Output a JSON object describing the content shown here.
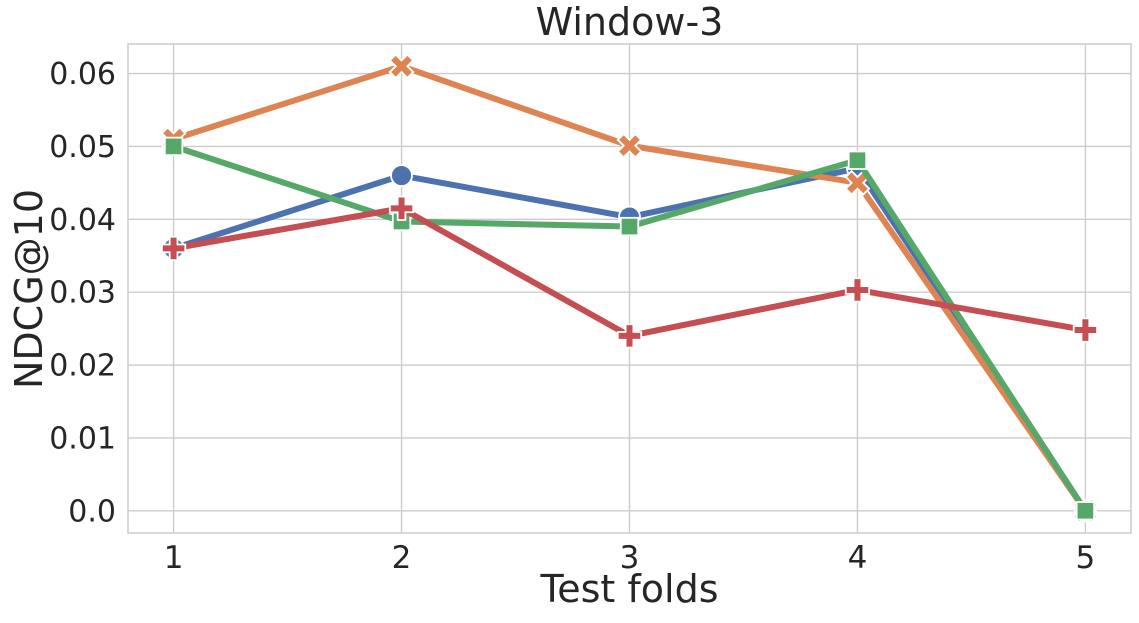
{
  "chart_data": {
    "type": "line",
    "title": "Window-3",
    "xlabel": "Test folds",
    "ylabel": "NDCG@10",
    "x": [
      1,
      2,
      3,
      4,
      5
    ],
    "xtick_labels": [
      "1",
      "2",
      "3",
      "4",
      "5"
    ],
    "ytick_values": [
      0.0,
      0.01,
      0.02,
      0.03,
      0.04,
      0.05,
      0.06
    ],
    "ytick_labels": [
      "0.0",
      "0.01",
      "0.02",
      "0.03",
      "0.04",
      "0.05",
      "0.06"
    ],
    "xlim": [
      0.8,
      5.2
    ],
    "ylim": [
      -0.00305,
      0.06405
    ],
    "grid": true,
    "legend": "none",
    "series": [
      {
        "name": "series-blue-circle",
        "marker": "circle",
        "color": "#4C72B0",
        "values": [
          0.036,
          0.046,
          0.0403,
          0.047,
          0.0
        ]
      },
      {
        "name": "series-orange-x",
        "marker": "x",
        "color": "#DD8452",
        "values": [
          0.051,
          0.061,
          0.0501,
          0.045,
          0.0
        ]
      },
      {
        "name": "series-green-square",
        "marker": "square",
        "color": "#55A868",
        "values": [
          0.05,
          0.0397,
          0.039,
          0.0481,
          0.0
        ]
      },
      {
        "name": "series-red-plus",
        "marker": "plus",
        "color": "#C44E52",
        "values": [
          0.036,
          0.0415,
          0.024,
          0.0303,
          0.0248
        ]
      }
    ]
  },
  "colors": {
    "background": "#ffffff",
    "grid": "#cccccc",
    "frame": "#cccccc",
    "text": "#262626",
    "marker_edge": "#ffffff"
  }
}
